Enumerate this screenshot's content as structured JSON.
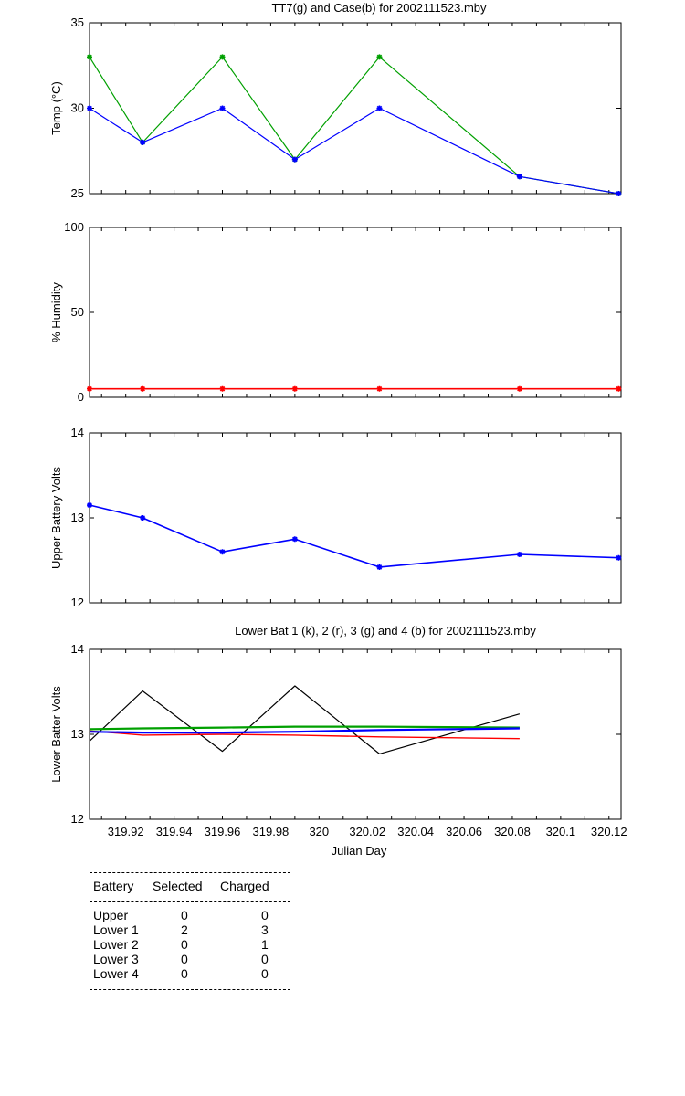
{
  "chart_data": [
    {
      "type": "line",
      "title": "TT7(g) and Case(b) for 2002111523.mby",
      "xlabel": "",
      "ylabel": "Temp  (°C)",
      "xlim": [
        319.905,
        320.125
      ],
      "ylim": [
        25,
        35
      ],
      "yticks": [
        "25",
        "30",
        "35"
      ],
      "grid": false,
      "series": [
        {
          "name": "TT7",
          "color": "#00a000",
          "x": [
            319.905,
            319.927,
            319.96,
            319.99,
            320.025,
            320.083,
            320.124
          ],
          "y": [
            33,
            28,
            33,
            27,
            33,
            26,
            25
          ]
        },
        {
          "name": "Case",
          "color": "#0000ff",
          "x": [
            319.905,
            319.927,
            319.96,
            319.99,
            320.025,
            320.083,
            320.124
          ],
          "y": [
            30,
            28,
            30,
            27,
            30,
            26,
            25
          ]
        }
      ]
    },
    {
      "type": "line",
      "title": "",
      "xlabel": "",
      "ylabel": "% Humidity",
      "xlim": [
        319.905,
        320.125
      ],
      "ylim": [
        0,
        100
      ],
      "yticks": [
        "0",
        "50",
        "100"
      ],
      "grid": false,
      "series": [
        {
          "name": "",
          "color": "#ff0000",
          "x": [
            319.905,
            319.927,
            319.96,
            319.99,
            320.025,
            320.083,
            320.124
          ],
          "y": [
            5,
            5,
            5,
            5,
            5,
            5,
            5
          ]
        }
      ]
    },
    {
      "type": "line",
      "title": "",
      "xlabel": "",
      "ylabel": "Upper Battery Volts",
      "xlim": [
        319.905,
        320.125
      ],
      "ylim": [
        12,
        14
      ],
      "yticks": [
        "12",
        "13",
        "14"
      ],
      "grid": false,
      "series": [
        {
          "name": "",
          "color": "#0000ff",
          "x": [
            319.905,
            319.927,
            319.96,
            319.99,
            320.025,
            320.083,
            320.124
          ],
          "y": [
            13.15,
            13.0,
            12.6,
            12.75,
            12.42,
            12.57,
            12.53
          ]
        }
      ]
    },
    {
      "type": "line",
      "title": "Lower Bat 1 (k), 2 (r), 3 (g) and 4 (b) for 2002111523.mby",
      "xlabel": "Julian Day",
      "ylabel": "Lower Batter Volts",
      "xlim": [
        319.905,
        320.125
      ],
      "ylim": [
        12,
        14
      ],
      "yticks": [
        "12",
        "13",
        "14"
      ],
      "xticks": [
        "319.92",
        "319.94",
        "319.96",
        "319.98",
        "320",
        "320.02",
        "320.04",
        "320.06",
        "320.08",
        "320.1",
        "320.12"
      ],
      "grid": false,
      "series": [
        {
          "name": "1",
          "color": "#000000",
          "x": [
            319.905,
            319.927,
            319.96,
            319.99,
            320.025,
            320.083
          ],
          "y": [
            12.92,
            13.51,
            12.8,
            13.57,
            12.77,
            13.24
          ]
        },
        {
          "name": "2",
          "color": "#ff0000",
          "x": [
            319.905,
            319.927,
            319.96,
            319.99,
            320.025,
            320.083
          ],
          "y": [
            13.04,
            12.99,
            13.0,
            12.99,
            12.97,
            12.95
          ]
        },
        {
          "name": "3",
          "color": "#00a000",
          "x": [
            319.905,
            319.927,
            319.96,
            319.99,
            320.025,
            320.083
          ],
          "y": [
            13.06,
            13.07,
            13.08,
            13.09,
            13.09,
            13.08
          ]
        },
        {
          "name": "4",
          "color": "#0000ff",
          "x": [
            319.905,
            319.927,
            319.96,
            319.99,
            320.025,
            320.083
          ],
          "y": [
            13.03,
            13.02,
            13.02,
            13.03,
            13.05,
            13.07
          ]
        }
      ]
    }
  ],
  "table": {
    "headers": [
      "Battery",
      "Selected",
      "Charged"
    ],
    "rows": [
      [
        "Upper",
        "0",
        "0"
      ],
      [
        "Lower 1",
        "2",
        "3"
      ],
      [
        "Lower 2",
        "0",
        "1"
      ],
      [
        "Lower 3",
        "0",
        "0"
      ],
      [
        "Lower 4",
        "0",
        "0"
      ]
    ]
  }
}
